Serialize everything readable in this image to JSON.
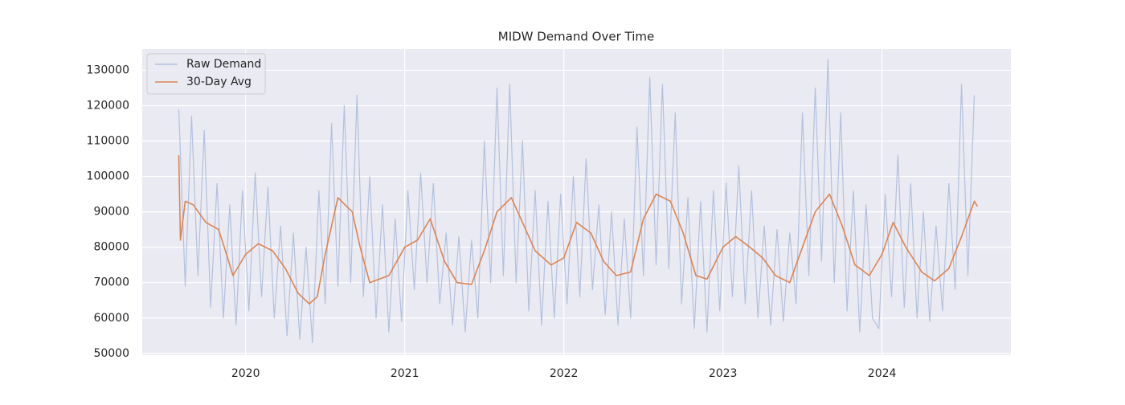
{
  "chart_data": {
    "type": "line",
    "title": "MIDW Demand Over Time",
    "xlim": [
      2019.35,
      2024.81
    ],
    "xticks": [
      2020,
      2021,
      2022,
      2023,
      2024
    ],
    "ylim": [
      49500,
      136000
    ],
    "yticks": [
      50000,
      60000,
      70000,
      80000,
      90000,
      100000,
      110000,
      120000,
      130000
    ],
    "grid": true,
    "legend": "upper left",
    "series": [
      {
        "name": "Raw Demand",
        "color": "#b3c1de",
        "x": [
          2019.58,
          2019.62,
          2019.66,
          2019.7,
          2019.74,
          2019.78,
          2019.82,
          2019.86,
          2019.9,
          2019.94,
          2019.98,
          2020.02,
          2020.06,
          2020.1,
          2020.14,
          2020.18,
          2020.22,
          2020.26,
          2020.3,
          2020.34,
          2020.38,
          2020.42,
          2020.46,
          2020.5,
          2020.54,
          2020.58,
          2020.62,
          2020.66,
          2020.7,
          2020.74,
          2020.78,
          2020.82,
          2020.86,
          2020.9,
          2020.94,
          2020.98,
          2021.02,
          2021.06,
          2021.1,
          2021.14,
          2021.18,
          2021.22,
          2021.26,
          2021.3,
          2021.34,
          2021.38,
          2021.42,
          2021.46,
          2021.5,
          2021.54,
          2021.58,
          2021.62,
          2021.66,
          2021.7,
          2021.74,
          2021.78,
          2021.82,
          2021.86,
          2021.9,
          2021.94,
          2021.98,
          2022.02,
          2022.06,
          2022.1,
          2022.14,
          2022.18,
          2022.22,
          2022.26,
          2022.3,
          2022.34,
          2022.38,
          2022.42,
          2022.46,
          2022.5,
          2022.54,
          2022.58,
          2022.62,
          2022.66,
          2022.7,
          2022.74,
          2022.78,
          2022.82,
          2022.86,
          2022.9,
          2022.94,
          2022.98,
          2023.02,
          2023.06,
          2023.1,
          2023.14,
          2023.18,
          2023.22,
          2023.26,
          2023.3,
          2023.34,
          2023.38,
          2023.42,
          2023.46,
          2023.5,
          2023.54,
          2023.58,
          2023.62,
          2023.66,
          2023.7,
          2023.74,
          2023.78,
          2023.82,
          2023.86,
          2023.9,
          2023.94,
          2023.98,
          2024.02,
          2024.06,
          2024.1,
          2024.14,
          2024.18,
          2024.22,
          2024.26,
          2024.3,
          2024.34,
          2024.38,
          2024.42,
          2024.46,
          2024.5,
          2024.54,
          2024.58
        ],
        "values": [
          119000,
          69000,
          117000,
          72000,
          113000,
          63000,
          98000,
          60000,
          92000,
          58000,
          96000,
          62000,
          101000,
          66000,
          97000,
          60000,
          86000,
          55000,
          84000,
          54000,
          80000,
          53000,
          96000,
          64000,
          115000,
          69000,
          120000,
          70000,
          123000,
          66000,
          100000,
          60000,
          92000,
          56000,
          88000,
          59000,
          96000,
          68000,
          101000,
          70000,
          98000,
          64000,
          84000,
          58000,
          83000,
          56000,
          82000,
          60000,
          110000,
          70000,
          125000,
          72000,
          126000,
          70000,
          110000,
          62000,
          96000,
          58000,
          93000,
          60000,
          95000,
          64000,
          100000,
          66000,
          105000,
          68000,
          92000,
          61000,
          90000,
          58000,
          88000,
          60000,
          114000,
          72000,
          128000,
          75000,
          126000,
          74000,
          118000,
          64000,
          94000,
          57000,
          93000,
          56000,
          96000,
          62000,
          98000,
          66000,
          103000,
          64000,
          96000,
          60000,
          86000,
          58000,
          85000,
          59000,
          84000,
          64000,
          118000,
          72000,
          125000,
          76000,
          133000,
          70000,
          118000,
          62000,
          96000,
          56000,
          92000,
          60000,
          57000,
          95000,
          66000,
          106000,
          63000,
          98000,
          60000,
          90000,
          59000,
          86000,
          62000,
          98000,
          68000,
          126000,
          72000,
          123000
        ]
      },
      {
        "name": "30-Day Avg",
        "color": "#dd8452",
        "x": [
          2019.58,
          2019.59,
          2019.62,
          2019.67,
          2019.75,
          2019.83,
          2019.88,
          2019.92,
          2020.0,
          2020.08,
          2020.17,
          2020.25,
          2020.33,
          2020.4,
          2020.45,
          2020.5,
          2020.58,
          2020.67,
          2020.72,
          2020.78,
          2020.9,
          2021.0,
          2021.08,
          2021.16,
          2021.25,
          2021.33,
          2021.42,
          2021.5,
          2021.58,
          2021.67,
          2021.75,
          2021.82,
          2021.92,
          2022.0,
          2022.08,
          2022.17,
          2022.25,
          2022.33,
          2022.42,
          2022.5,
          2022.58,
          2022.67,
          2022.75,
          2022.83,
          2022.9,
          2023.0,
          2023.08,
          2023.17,
          2023.25,
          2023.33,
          2023.42,
          2023.5,
          2023.58,
          2023.67,
          2023.75,
          2023.83,
          2023.92,
          2024.0,
          2024.07,
          2024.15,
          2024.25,
          2024.33,
          2024.42,
          2024.5,
          2024.58,
          2024.6
        ],
        "values": [
          106000,
          82000,
          93000,
          92000,
          87000,
          85000,
          78000,
          72000,
          78000,
          81000,
          79000,
          74000,
          67000,
          64000,
          66000,
          78000,
          94000,
          90000,
          80000,
          70000,
          72000,
          80000,
          82000,
          88000,
          76000,
          70000,
          69500,
          79000,
          90000,
          94000,
          86000,
          79000,
          75000,
          77000,
          87000,
          84000,
          76000,
          72000,
          73000,
          88000,
          95000,
          93000,
          84000,
          72000,
          71000,
          80000,
          83000,
          80000,
          77000,
          72000,
          70000,
          80000,
          90000,
          95000,
          86000,
          75000,
          72000,
          78000,
          87000,
          80000,
          73000,
          70500,
          74000,
          83000,
          93000,
          91500
        ]
      }
    ]
  }
}
